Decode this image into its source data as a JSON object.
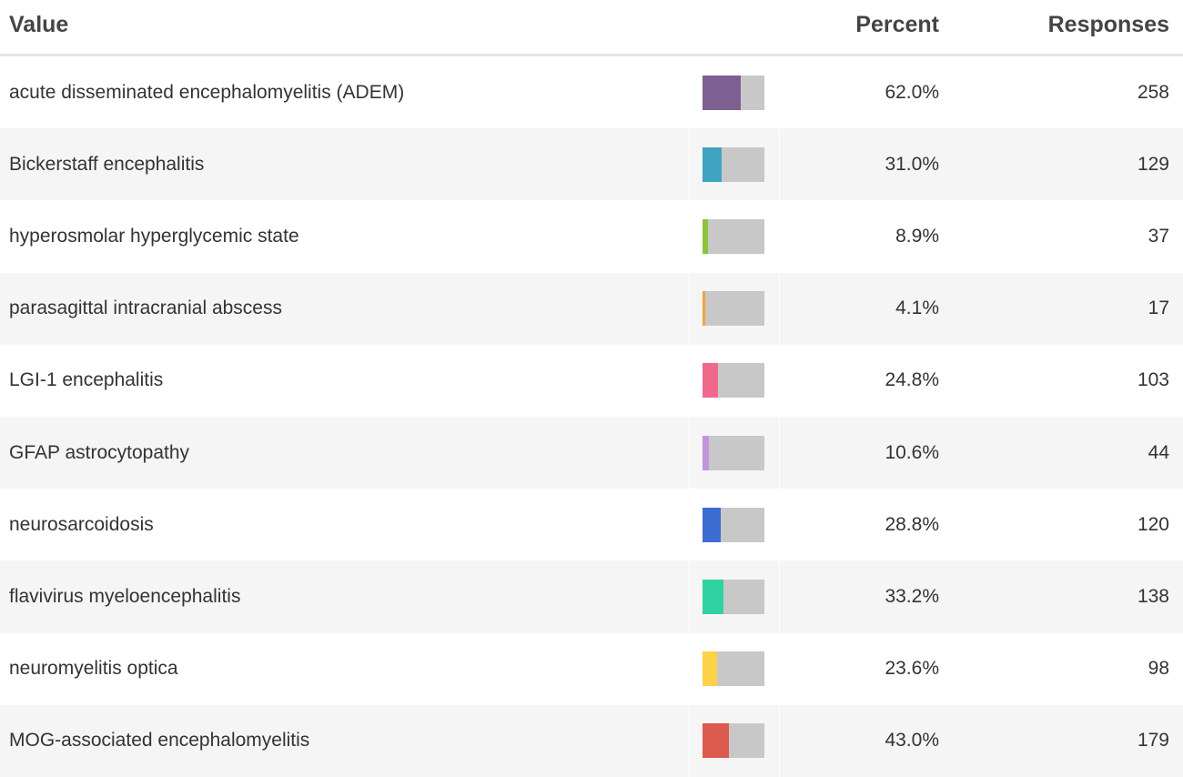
{
  "table": {
    "headers": [
      "Value",
      "Percent",
      "Responses"
    ],
    "rows": [
      {
        "value": "acute disseminated encephalomyelitis (ADEM)",
        "percent": 62.0,
        "percent_label": "62.0%",
        "responses": 258,
        "color": "#7d5f92"
      },
      {
        "value": "Bickerstaff encephalitis",
        "percent": 31.0,
        "percent_label": "31.0%",
        "responses": 129,
        "color": "#3ea4c1"
      },
      {
        "value": "hyperosmolar hyperglycemic state",
        "percent": 8.9,
        "percent_label": "8.9%",
        "responses": 37,
        "color": "#8cc43c"
      },
      {
        "value": "parasagittal intracranial abscess",
        "percent": 4.1,
        "percent_label": "4.1%",
        "responses": 17,
        "color": "#f2a33a"
      },
      {
        "value": "LGI-1 encephalitis",
        "percent": 24.8,
        "percent_label": "24.8%",
        "responses": 103,
        "color": "#f0698a"
      },
      {
        "value": "GFAP astrocytopathy",
        "percent": 10.6,
        "percent_label": "10.6%",
        "responses": 44,
        "color": "#c393dc"
      },
      {
        "value": "neurosarcoidosis",
        "percent": 28.8,
        "percent_label": "28.8%",
        "responses": 120,
        "color": "#3d6cd2"
      },
      {
        "value": "flavivirus myeloencephalitis",
        "percent": 33.2,
        "percent_label": "33.2%",
        "responses": 138,
        "color": "#2fd2a0"
      },
      {
        "value": "neuromyelitis optica",
        "percent": 23.6,
        "percent_label": "23.6%",
        "responses": 98,
        "color": "#fdd148"
      },
      {
        "value": "MOG-associated encephalomyelitis",
        "percent": 43.0,
        "percent_label": "43.0%",
        "responses": 179,
        "color": "#dc5a4e"
      }
    ]
  }
}
